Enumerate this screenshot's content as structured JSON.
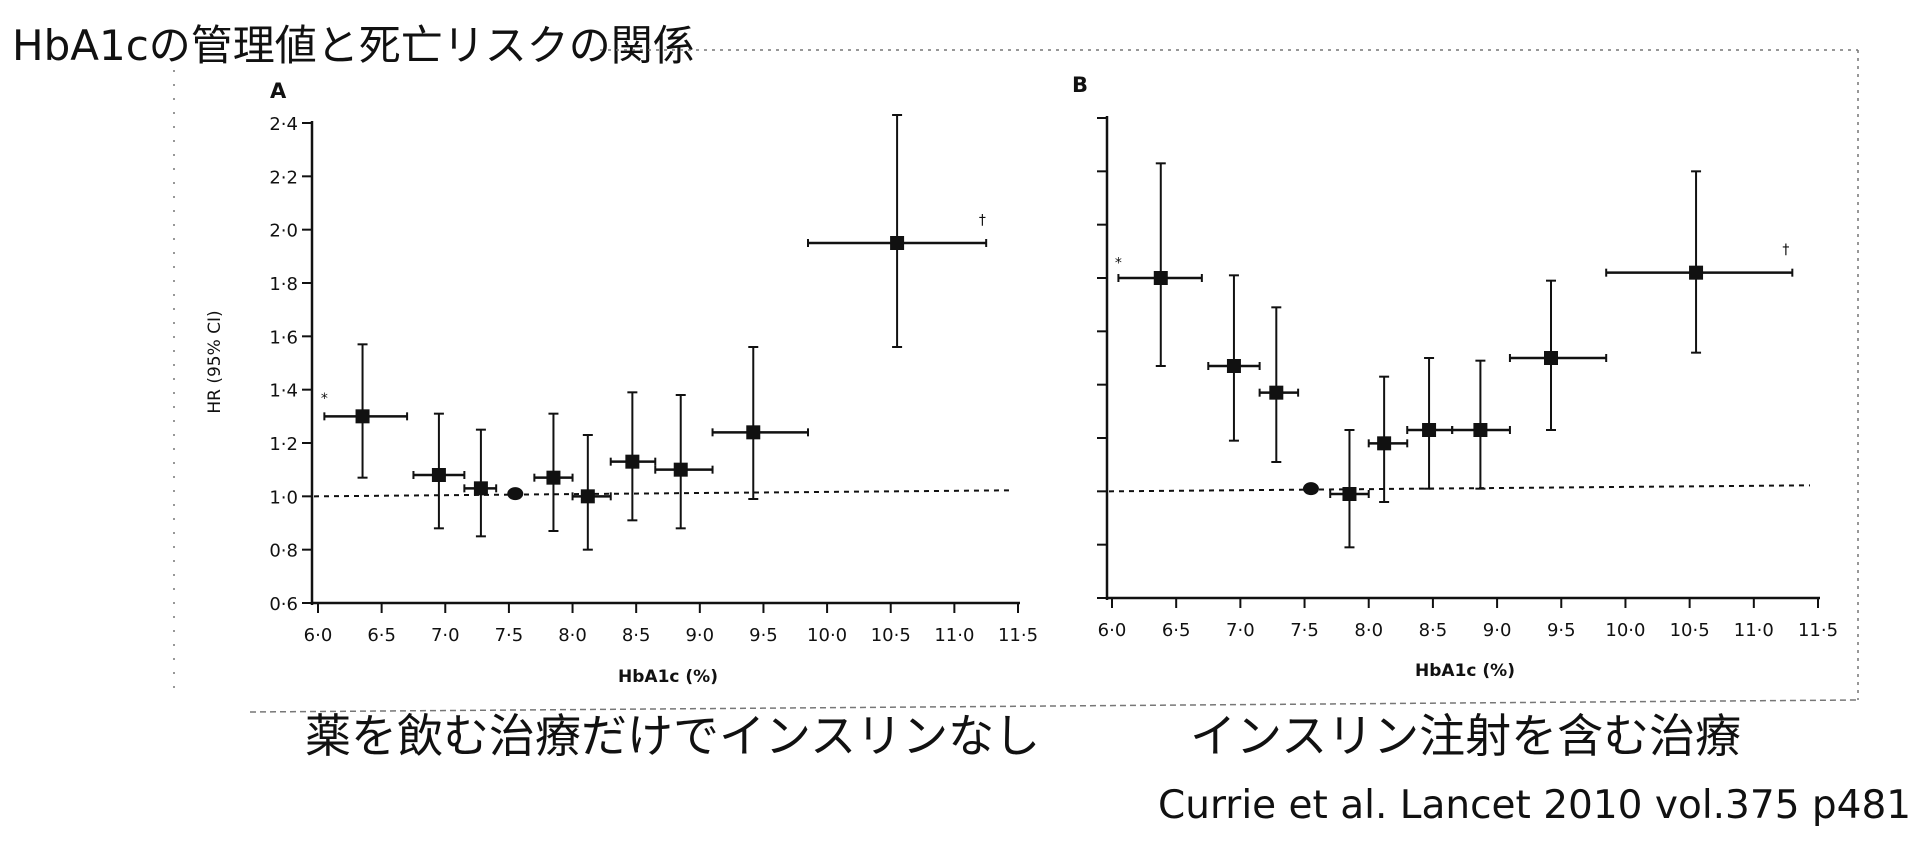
{
  "title": "HbA1cの管理値と死亡リスクの関係",
  "captions": {
    "panel_a": "薬を飲む治療だけでインスリンなし",
    "panel_b": "インスリン注射を含む治療"
  },
  "citation": "Currie et al. Lancet 2010 vol.375 p481",
  "chart_data": [
    {
      "type": "scatter",
      "panel_label": "A",
      "xlabel": "HbA1c (%)",
      "ylabel": "HR (95% CI)",
      "xlim": [
        6.0,
        11.5
      ],
      "ylim": [
        0.6,
        2.4
      ],
      "x_ticks": [
        "6·0",
        "6·5",
        "7·0",
        "7·5",
        "8·0",
        "8·5",
        "9·0",
        "9·5",
        "10·0",
        "10·5",
        "11·0",
        "11·5"
      ],
      "y_ticks": [
        "0·6",
        "0·8",
        "1·0",
        "1·2",
        "1·4",
        "1·6",
        "1·8",
        "2·0",
        "2·2",
        "2·4"
      ],
      "reference_line": 1.0,
      "points": [
        {
          "x": 6.35,
          "y": 1.3,
          "xlo": 6.05,
          "xhi": 6.7,
          "ylo": 1.07,
          "yhi": 1.57,
          "marker": "square"
        },
        {
          "x": 6.95,
          "y": 1.08,
          "xlo": 6.75,
          "xhi": 7.15,
          "ylo": 0.88,
          "yhi": 1.31,
          "marker": "square"
        },
        {
          "x": 7.28,
          "y": 1.03,
          "xlo": 7.15,
          "xhi": 7.4,
          "ylo": 0.85,
          "yhi": 1.25,
          "marker": "square"
        },
        {
          "x": 7.55,
          "y": 1.01,
          "xlo": 7.55,
          "xhi": 7.55,
          "ylo": 1.01,
          "yhi": 1.01,
          "marker": "circle"
        },
        {
          "x": 7.85,
          "y": 1.07,
          "xlo": 7.7,
          "xhi": 8.0,
          "ylo": 0.87,
          "yhi": 1.31,
          "marker": "square"
        },
        {
          "x": 8.12,
          "y": 1.0,
          "xlo": 8.0,
          "xhi": 8.3,
          "ylo": 0.8,
          "yhi": 1.23,
          "marker": "square"
        },
        {
          "x": 8.47,
          "y": 1.13,
          "xlo": 8.3,
          "xhi": 8.65,
          "ylo": 0.91,
          "yhi": 1.39,
          "marker": "square"
        },
        {
          "x": 8.85,
          "y": 1.1,
          "xlo": 8.65,
          "xhi": 9.1,
          "ylo": 0.88,
          "yhi": 1.38,
          "marker": "square"
        },
        {
          "x": 9.42,
          "y": 1.24,
          "xlo": 9.1,
          "xhi": 9.85,
          "ylo": 0.99,
          "yhi": 1.56,
          "marker": "square"
        },
        {
          "x": 10.55,
          "y": 1.95,
          "xlo": 9.85,
          "xhi": 11.25,
          "ylo": 1.56,
          "yhi": 2.43,
          "marker": "square"
        }
      ],
      "annotations": [
        {
          "text": "*",
          "x": 6.05,
          "y": 1.35
        },
        {
          "text": "†",
          "x": 11.22,
          "y": 2.02
        }
      ]
    },
    {
      "type": "scatter",
      "panel_label": "B",
      "xlabel": "HbA1c (%)",
      "xlim": [
        6.0,
        11.5
      ],
      "ylim": [
        0.6,
        2.4
      ],
      "x_ticks": [
        "6·0",
        "6·5",
        "7·0",
        "7·5",
        "8·0",
        "8·5",
        "9·0",
        "9·5",
        "10·0",
        "10·5",
        "11·0",
        "11·5"
      ],
      "reference_line": 1.0,
      "points": [
        {
          "x": 6.38,
          "y": 1.8,
          "xlo": 6.05,
          "xhi": 6.7,
          "ylo": 1.47,
          "yhi": 2.23,
          "marker": "square"
        },
        {
          "x": 6.95,
          "y": 1.47,
          "xlo": 6.75,
          "xhi": 7.15,
          "ylo": 1.19,
          "yhi": 1.81,
          "marker": "square"
        },
        {
          "x": 7.28,
          "y": 1.37,
          "xlo": 7.15,
          "xhi": 7.45,
          "ylo": 1.11,
          "yhi": 1.69,
          "marker": "square"
        },
        {
          "x": 7.55,
          "y": 1.01,
          "xlo": 7.55,
          "xhi": 7.55,
          "ylo": 1.01,
          "yhi": 1.01,
          "marker": "circle"
        },
        {
          "x": 7.85,
          "y": 0.99,
          "xlo": 7.7,
          "xhi": 8.0,
          "ylo": 0.79,
          "yhi": 1.23,
          "marker": "square"
        },
        {
          "x": 8.12,
          "y": 1.18,
          "xlo": 8.0,
          "xhi": 8.3,
          "ylo": 0.96,
          "yhi": 1.43,
          "marker": "square"
        },
        {
          "x": 8.47,
          "y": 1.23,
          "xlo": 8.3,
          "xhi": 8.65,
          "ylo": 1.01,
          "yhi": 1.5,
          "marker": "square"
        },
        {
          "x": 8.87,
          "y": 1.23,
          "xlo": 8.65,
          "xhi": 9.1,
          "ylo": 1.01,
          "yhi": 1.49,
          "marker": "square"
        },
        {
          "x": 9.42,
          "y": 1.5,
          "xlo": 9.1,
          "xhi": 9.85,
          "ylo": 1.23,
          "yhi": 1.79,
          "marker": "square"
        },
        {
          "x": 10.55,
          "y": 1.82,
          "xlo": 9.85,
          "xhi": 11.3,
          "ylo": 1.52,
          "yhi": 2.2,
          "marker": "square"
        }
      ],
      "annotations": [
        {
          "text": "*",
          "x": 6.05,
          "y": 1.84
        },
        {
          "text": "†",
          "x": 11.25,
          "y": 1.89
        }
      ]
    }
  ]
}
